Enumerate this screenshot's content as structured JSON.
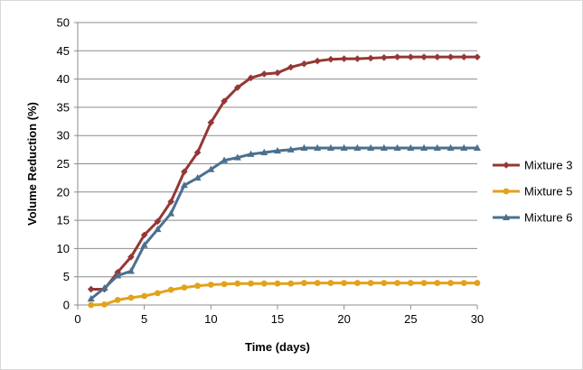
{
  "chart_data": {
    "type": "line",
    "title": "",
    "xlabel": "Time (days)",
    "ylabel": "Volume Reduction (%)",
    "xlim": [
      0,
      30
    ],
    "ylim": [
      0,
      50
    ],
    "xticks": [
      0,
      5,
      10,
      15,
      20,
      25,
      30
    ],
    "yticks": [
      0,
      5,
      10,
      15,
      20,
      25,
      30,
      35,
      40,
      45,
      50
    ],
    "grid": "horizontal",
    "legend_position": "right",
    "x": [
      1,
      2,
      3,
      4,
      5,
      6,
      7,
      8,
      9,
      10,
      11,
      12,
      13,
      14,
      15,
      16,
      17,
      18,
      19,
      20,
      21,
      22,
      23,
      24,
      25,
      26,
      27,
      28,
      29,
      30
    ],
    "series": [
      {
        "name": "Mixture 3",
        "color": "#953735",
        "marker": "diamond",
        "values": [
          2.8,
          2.8,
          5.8,
          8.5,
          12.4,
          14.8,
          18.3,
          23.6,
          27.0,
          32.3,
          36.1,
          38.5,
          40.2,
          40.9,
          41.1,
          42.1,
          42.7,
          43.2,
          43.5,
          43.6,
          43.6,
          43.7,
          43.8,
          43.9,
          43.9,
          43.9,
          43.9,
          43.9,
          43.9,
          43.9
        ]
      },
      {
        "name": "Mixture 5",
        "color": "#e3a21a",
        "marker": "circle",
        "values": [
          0.0,
          0.1,
          0.9,
          1.3,
          1.6,
          2.1,
          2.7,
          3.1,
          3.4,
          3.6,
          3.7,
          3.8,
          3.8,
          3.8,
          3.8,
          3.8,
          3.9,
          3.9,
          3.9,
          3.9,
          3.9,
          3.9,
          3.9,
          3.9,
          3.9,
          3.9,
          3.9,
          3.9,
          3.9,
          3.9
        ]
      },
      {
        "name": "Mixture 6",
        "color": "#4a7090",
        "marker": "triangle",
        "values": [
          1.1,
          3.0,
          5.2,
          6.0,
          10.6,
          13.4,
          16.2,
          21.2,
          22.5,
          24.0,
          25.6,
          26.1,
          26.7,
          27.0,
          27.3,
          27.5,
          27.8,
          27.8,
          27.8,
          27.8,
          27.8,
          27.8,
          27.8,
          27.8,
          27.8,
          27.8,
          27.8,
          27.8,
          27.8,
          27.8
        ]
      }
    ]
  }
}
